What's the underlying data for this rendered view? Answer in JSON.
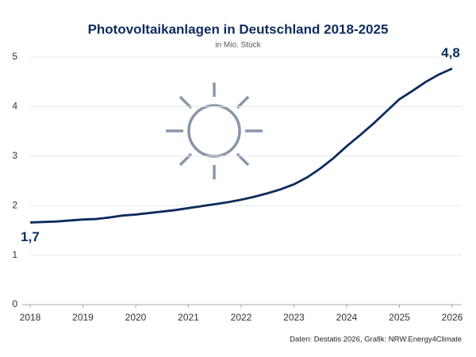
{
  "chart_data": {
    "type": "line",
    "title": "Photovoltaikanlagen in Deutschland 2018-2025",
    "subtitle": "in Mio. Stück",
    "source": "Daten: Destatis 2026, Grafik: NRW.Energy4Climate",
    "x": [
      2018,
      2018.25,
      2018.5,
      2018.75,
      2019,
      2019.25,
      2019.5,
      2019.75,
      2020,
      2020.25,
      2020.5,
      2020.75,
      2021,
      2021.25,
      2021.5,
      2021.75,
      2022,
      2022.25,
      2022.5,
      2022.75,
      2023,
      2023.25,
      2023.5,
      2023.75,
      2024,
      2024.25,
      2024.5,
      2024.75,
      2025,
      2025.25,
      2025.5,
      2025.75,
      2026
    ],
    "series": [
      {
        "name": "Photovoltaikanlagen",
        "color": "#0d2b5c",
        "values": [
          1.66,
          1.67,
          1.68,
          1.7,
          1.72,
          1.73,
          1.76,
          1.8,
          1.82,
          1.85,
          1.88,
          1.91,
          1.95,
          1.99,
          2.03,
          2.07,
          2.12,
          2.18,
          2.25,
          2.33,
          2.43,
          2.57,
          2.75,
          2.96,
          3.2,
          3.42,
          3.65,
          3.9,
          4.15,
          4.32,
          4.5,
          4.65,
          4.77
        ],
        "value_labels": [
          "1,7",
          null,
          null,
          null,
          null,
          null,
          null,
          null,
          null,
          null,
          null,
          null,
          null,
          null,
          null,
          null,
          null,
          null,
          null,
          null,
          null,
          null,
          null,
          null,
          null,
          null,
          null,
          null,
          null,
          null,
          null,
          null,
          "4,8"
        ]
      }
    ],
    "xlim": [
      2018,
      2026
    ],
    "xticks": [
      2018,
      2019,
      2020,
      2021,
      2022,
      2023,
      2024,
      2025,
      2026
    ],
    "ylim": [
      0,
      5
    ],
    "yticks": [
      0,
      1,
      2,
      3,
      4,
      5
    ],
    "grid": true
  }
}
